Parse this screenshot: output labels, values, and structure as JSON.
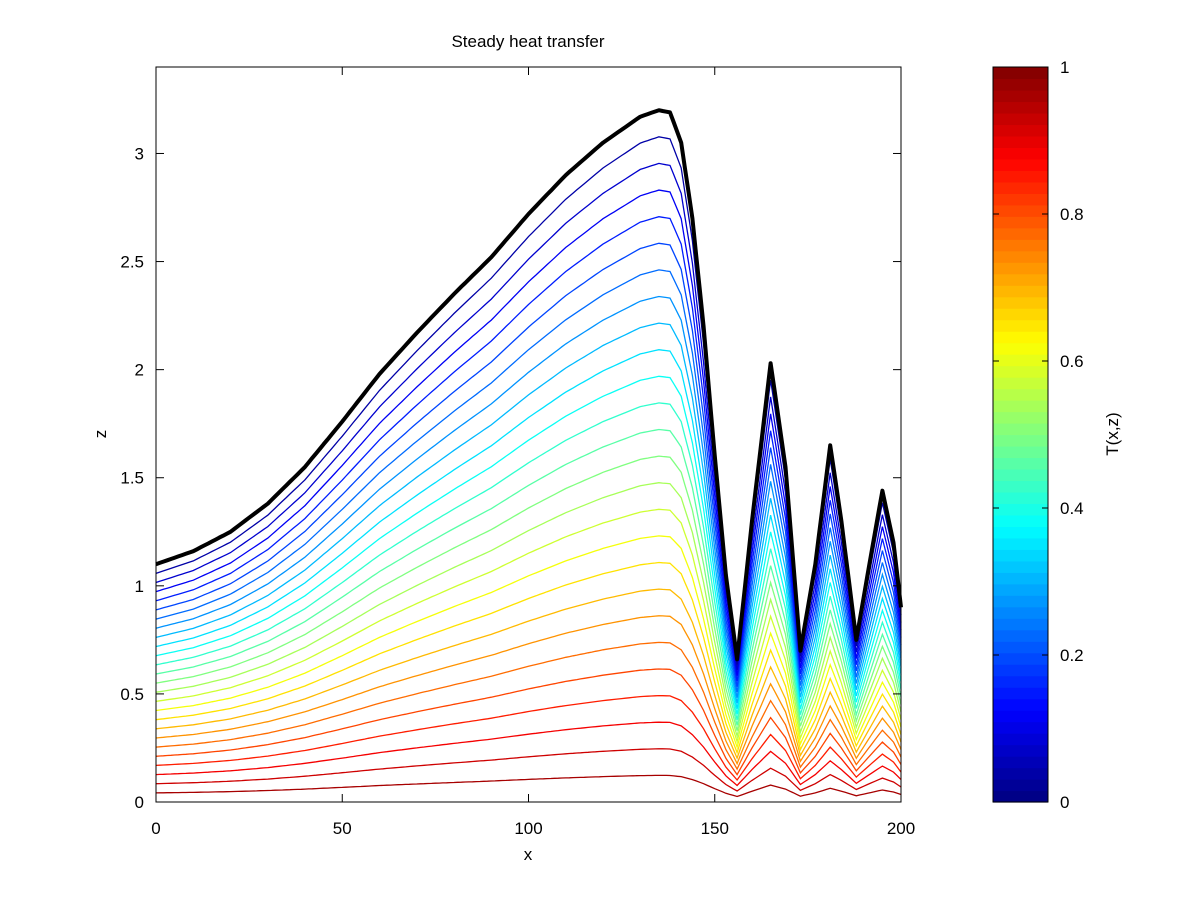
{
  "chart_data": {
    "type": "line",
    "title": "Steady heat transfer",
    "xlabel": "x",
    "ylabel": "z",
    "xlim": [
      0,
      200
    ],
    "ylim": [
      0,
      3.4
    ],
    "xticks": [
      0,
      50,
      100,
      150,
      200
    ],
    "yticks": [
      0,
      0.5,
      1,
      1.5,
      2,
      2.5,
      3
    ],
    "xtick_labels": [
      "0",
      "50",
      "100",
      "150",
      "200"
    ],
    "ytick_labels": [
      "0",
      "0.5",
      "1",
      "1.5",
      "2",
      "2.5",
      "3"
    ],
    "grid": false,
    "surface": {
      "x": [
        0,
        10,
        20,
        30,
        40,
        50,
        60,
        70,
        80,
        90,
        100,
        110,
        120,
        130,
        135,
        138,
        141,
        144,
        147,
        150,
        153,
        156,
        160,
        165,
        169,
        173,
        177,
        181,
        184,
        188,
        191,
        195,
        198,
        200
      ],
      "z": [
        1.1,
        1.16,
        1.25,
        1.38,
        1.55,
        1.76,
        1.98,
        2.17,
        2.35,
        2.52,
        2.72,
        2.9,
        3.05,
        3.17,
        3.2,
        3.19,
        3.05,
        2.7,
        2.2,
        1.6,
        1.05,
        0.66,
        1.3,
        2.03,
        1.55,
        0.7,
        1.1,
        1.65,
        1.3,
        0.75,
        1.05,
        1.44,
        1.2,
        0.9
      ]
    },
    "temperature_range": [
      0,
      1
    ],
    "colorbar": {
      "label": "T(x,z)",
      "ticks": [
        0,
        0.2,
        0.4,
        0.6,
        0.8,
        1
      ],
      "tick_labels": [
        "0",
        "0.2",
        "0.4",
        "0.6",
        "0.8",
        "1"
      ],
      "colormap": "jet"
    },
    "isotherm_count": 25
  }
}
